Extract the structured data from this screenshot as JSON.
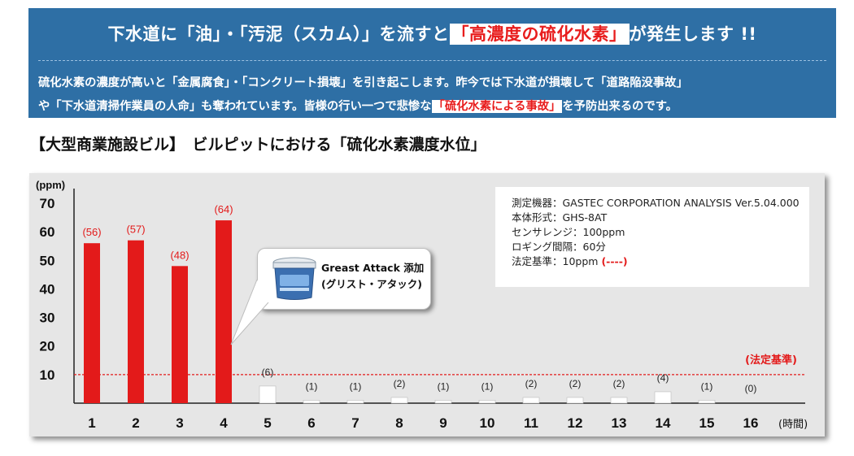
{
  "banner": {
    "title_pre": "下水道に「油」・「汚泥（スカム）」を流すと",
    "title_highlight": "「高濃度の硫化水素」",
    "title_post": "が発生します !!",
    "line1": "硫化水素の濃度が高いと「金属腐食」・「コンクリート損壊」を引き起こします。昨今では下水道が損壊して「道路陥没事故」",
    "line2_pre": "や「下水道清掃作業員の人命」も奪われています。皆様の行い一つで悲惨な",
    "line2_highlight": "「硫化水素による事故」",
    "line2_post": "を予防出来るのです。",
    "color": "#2e6fa5"
  },
  "section_heading": "【大型商業施設ビル】　ビルピットにおける「硫化水素濃度水位」",
  "info_box": {
    "line1": "測定機器：GASTEC CORPORATION ANALYSIS Ver.5.04.000",
    "line2": "本体形式：GHS-8AT",
    "line3": "センサレンジ：100ppm",
    "line4": "ロギング間隔：60分",
    "line5": "法定基準：10ppm",
    "line5_legend": "(----)"
  },
  "callout": {
    "product": "Greast Attack 添加",
    "product_sub": "(グリスト・アタック)",
    "image": "product-bucket-icon"
  },
  "chart_data": {
    "type": "bar",
    "ylabel": "(ppm)",
    "xlabel": "(時間)",
    "ylim": [
      0,
      70
    ],
    "yticks": [
      10,
      20,
      30,
      40,
      50,
      60,
      70
    ],
    "categories": [
      "1",
      "2",
      "3",
      "4",
      "5",
      "6",
      "7",
      "8",
      "9",
      "10",
      "11",
      "12",
      "13",
      "14",
      "15",
      "16"
    ],
    "values": [
      56,
      57,
      48,
      64,
      6,
      1,
      1,
      2,
      1,
      1,
      2,
      2,
      2,
      4,
      1,
      0
    ],
    "data_labels": [
      "(56)",
      "(57)",
      "(48)",
      "(64)",
      "(6)",
      "(1)",
      "(1)",
      "(2)",
      "(1)",
      "(1)",
      "(2)",
      "(2)",
      "(2)",
      "(4)",
      "(1)",
      "(0)"
    ],
    "before_treatment_count": 4,
    "colors": {
      "before": "#e31a1a",
      "after": "#ffffff",
      "threshold": "#e31a1a"
    },
    "threshold": {
      "value": 10,
      "label": "(法定基準)"
    },
    "grid": false
  }
}
